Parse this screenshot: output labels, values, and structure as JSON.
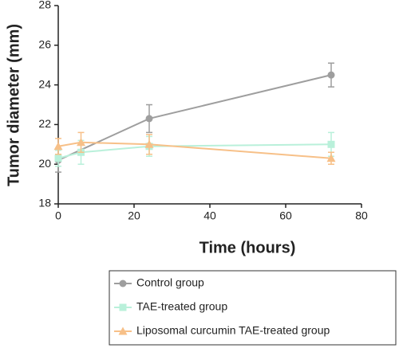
{
  "chart_data": {
    "type": "line",
    "x_label": "Time (hours)",
    "y_label": "Tumor diameter (mm)",
    "xlim": [
      0,
      80
    ],
    "xticks": [
      0,
      20,
      40,
      60,
      80
    ],
    "ylim": [
      18,
      28
    ],
    "yticks": [
      18,
      20,
      22,
      24,
      26,
      28
    ],
    "series": [
      {
        "name": "Control group",
        "color": "#9e9e9e",
        "marker": "circle",
        "x": [
          0,
          24,
          72
        ],
        "values": [
          20.2,
          22.3,
          24.5
        ],
        "errors": [
          0.6,
          0.7,
          0.6
        ]
      },
      {
        "name": "TAE-treated group",
        "color": "#b9f0da",
        "marker": "square",
        "x": [
          0,
          6,
          24,
          72
        ],
        "values": [
          20.3,
          20.6,
          20.9,
          21.0
        ],
        "errors": [
          0.4,
          0.6,
          0.5,
          0.6
        ]
      },
      {
        "name": "Liposomal curcumin TAE-treated group",
        "color": "#f7c088",
        "marker": "triangle",
        "x": [
          0,
          6,
          24,
          72
        ],
        "values": [
          20.9,
          21.1,
          21.0,
          20.3
        ],
        "errors": [
          0.4,
          0.5,
          0.5,
          0.3
        ]
      }
    ]
  }
}
